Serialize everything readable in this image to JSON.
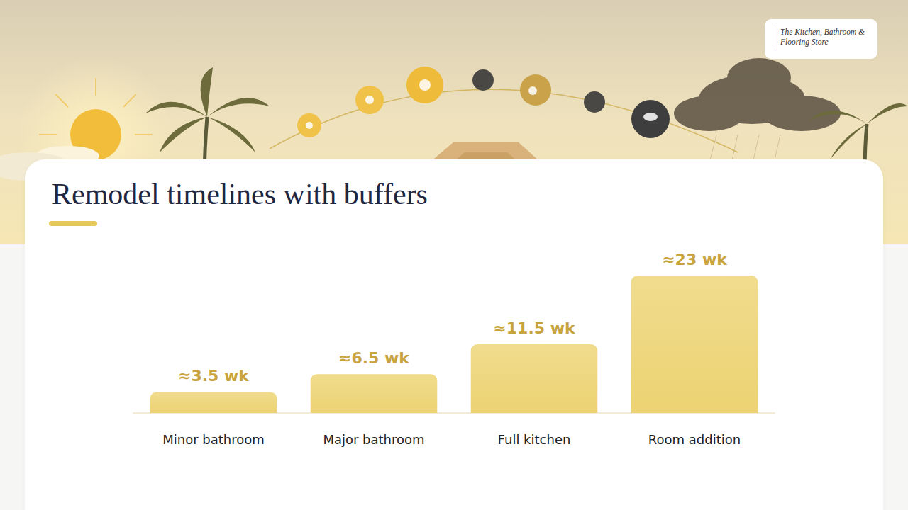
{
  "chart_data": {
    "type": "bar",
    "title": "Remodel timelines with buffers",
    "annotations": [
      "The Kitchen, Bathroom & Flooring Store"
    ],
    "categories": [
      "Minor bathroom",
      "Major bathroom",
      "Full kitchen",
      "Room addition"
    ],
    "values": [
      3.5,
      6.5,
      11.5,
      23
    ],
    "value_labels": [
      "≈3.5 wk",
      "≈6.5 wk",
      "≈11.5 wk",
      "≈23 wk"
    ],
    "color": "#ecd272",
    "ylim": [
      0,
      23
    ],
    "grid": false,
    "data_labels": true,
    "tick_labels": "x"
  }
}
